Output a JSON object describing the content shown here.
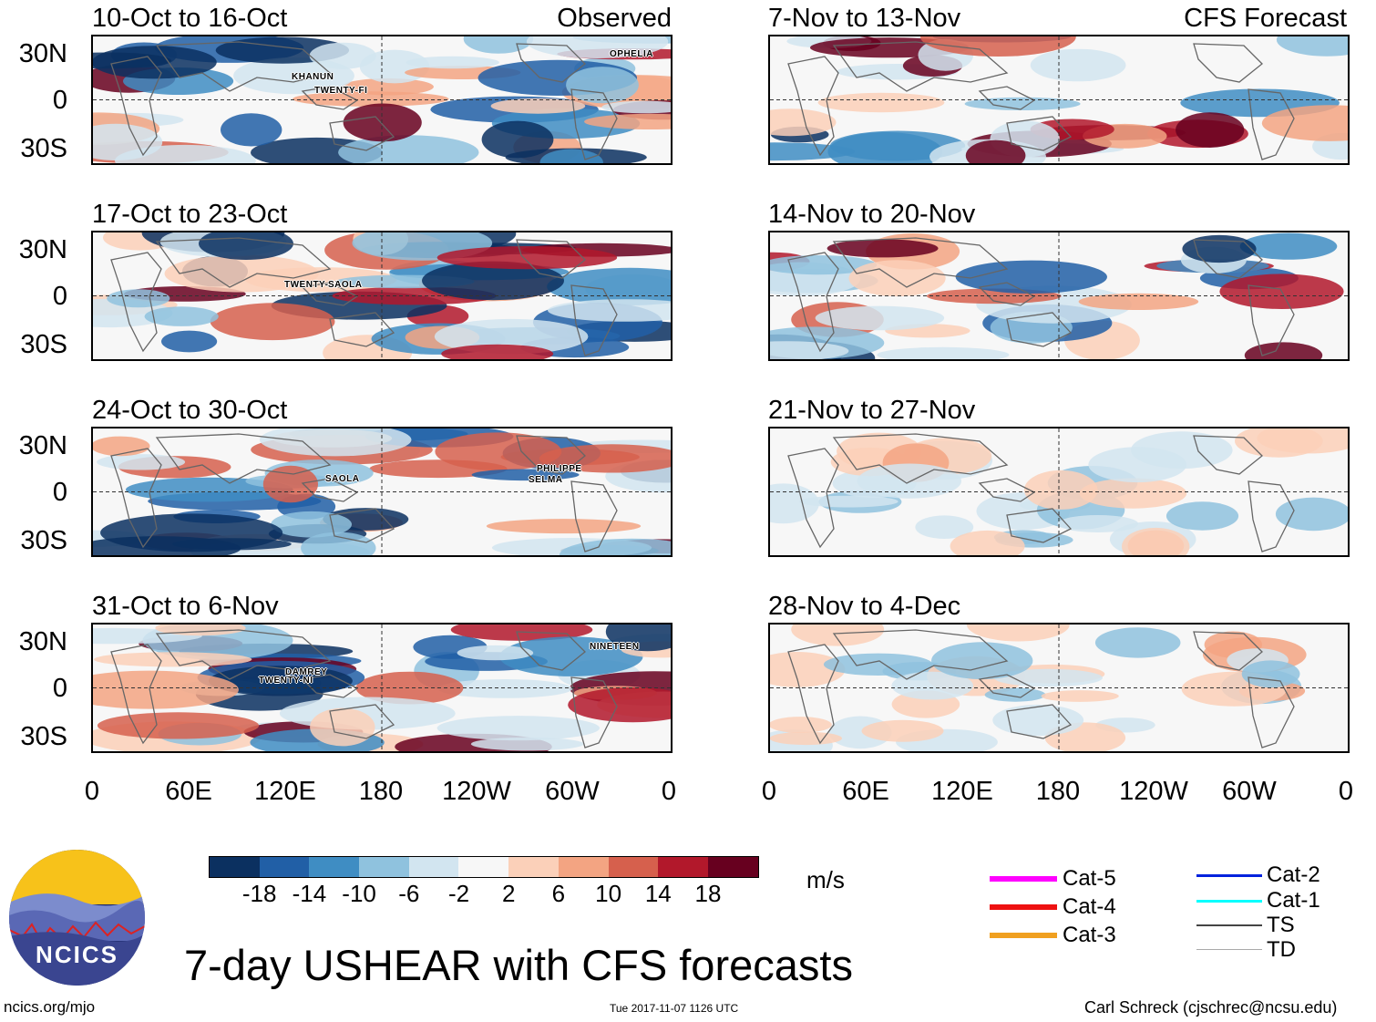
{
  "observed_label": "Observed",
  "forecast_label": "CFS Forecast",
  "latitude_labels": [
    "30N",
    "0",
    "30S"
  ],
  "longitude_labels": [
    "0",
    "60E",
    "120E",
    "180",
    "120W",
    "60W",
    "0"
  ],
  "panels": [
    {
      "title": "10-Oct to 16-Oct",
      "storms": [
        "KHANUN",
        "TWENTY-FI",
        "OPHELIA"
      ]
    },
    {
      "title": "17-Oct to 23-Oct",
      "storms": [
        "TWENTY-SI",
        "SAOLA"
      ]
    },
    {
      "title": "24-Oct to 30-Oct",
      "storms": [
        "SAOLA",
        "PHILIPPE",
        "SELMA"
      ]
    },
    {
      "title": "31-Oct to 6-Nov",
      "storms": [
        "DAMREY",
        "TWENTY-NI",
        "NINETEEN"
      ]
    },
    {
      "title": "7-Nov to 13-Nov",
      "storms": []
    },
    {
      "title": "14-Nov to 20-Nov",
      "storms": []
    },
    {
      "title": "21-Nov to 27-Nov",
      "storms": []
    },
    {
      "title": "28-Nov to 4-Dec",
      "storms": []
    }
  ],
  "colorbar": {
    "colors": [
      "#0b3060",
      "#215fa6",
      "#3f8dc3",
      "#8fc2de",
      "#d2e5f0",
      "#f7f7f7",
      "#fbd0b9",
      "#f3a482",
      "#d6604d",
      "#b2182b",
      "#67001f"
    ],
    "ticks": [
      "-18",
      "-14",
      "-10",
      "-6",
      "-2",
      "2",
      "6",
      "10",
      "14",
      "18"
    ],
    "units": "m/s"
  },
  "legend": [
    {
      "label": "Cat-5",
      "color": "#ff00ff"
    },
    {
      "label": "Cat-4",
      "color": "#ee1111"
    },
    {
      "label": "Cat-3",
      "color": "#f0a020"
    },
    {
      "label": "Cat-2",
      "color": "#0022dd"
    },
    {
      "label": "Cat-1",
      "color": "#00ffff"
    },
    {
      "label": "TS",
      "color": "#444444"
    },
    {
      "label": "TD",
      "color": "#aaaaaa"
    }
  ],
  "main_title": "7-day USHEAR with CFS forecasts",
  "logo_text": "NCICS",
  "footer_left": "ncics.org/mjo",
  "footer_center": "Tue 2017-11-07 1126 UTC",
  "footer_right": "Carl Schreck (cjschrec@ncsu.edu)"
}
